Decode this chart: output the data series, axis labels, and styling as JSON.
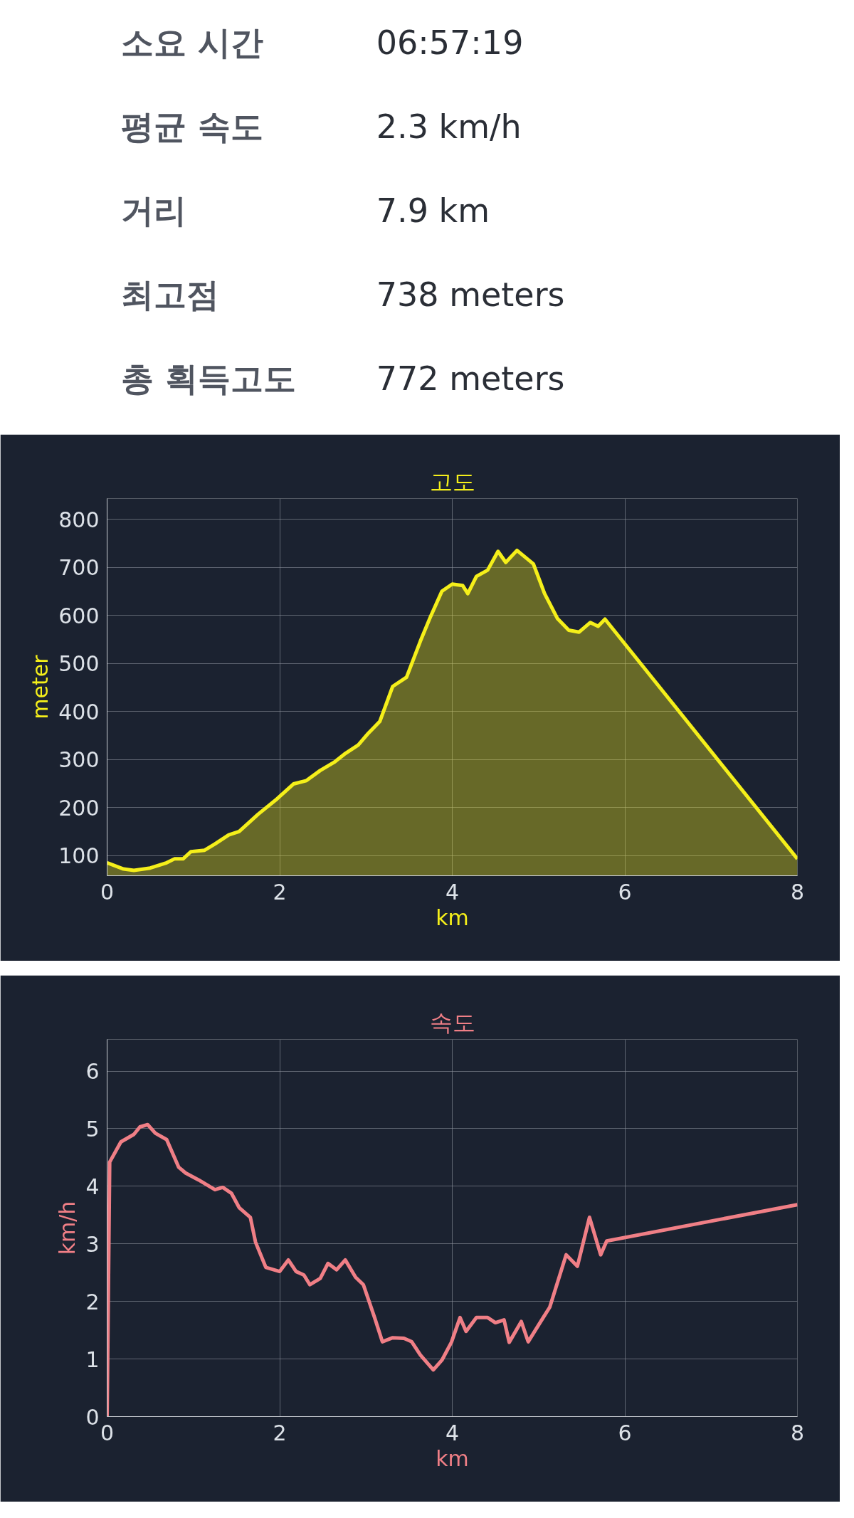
{
  "chart_data": [
    {
      "type": "other",
      "annotations": [
        "소요 시간",
        "06:57:19",
        "평균 속도",
        "2.3 km/h",
        "거리",
        "7.9 km",
        "최고점",
        "738 meters",
        "총 획득고도",
        "772 meters"
      ]
    },
    {
      "type": "area",
      "title": "고도",
      "xlabel": "km",
      "ylabel": "meter",
      "xlim": [
        0,
        8
      ],
      "xticks": [
        0,
        2,
        4,
        6,
        8
      ],
      "ylim": [
        58,
        843
      ],
      "yticks": [
        100,
        200,
        300,
        400,
        500,
        600,
        700,
        800
      ],
      "grid": true,
      "x": [
        0,
        0.19,
        0.31,
        0.5,
        0.69,
        0.78,
        0.88,
        0.97,
        1.13,
        1.25,
        1.41,
        1.53,
        1.75,
        1.97,
        2.16,
        2.31,
        2.47,
        2.63,
        2.75,
        2.91,
        3.03,
        3.16,
        3.31,
        3.47,
        3.63,
        3.75,
        3.88,
        4.0,
        4.12,
        4.18,
        4.28,
        4.41,
        4.53,
        4.62,
        4.75,
        4.94,
        5.07,
        5.22,
        5.35,
        5.47,
        5.6,
        5.69,
        5.77,
        8.0
      ],
      "series": [
        {
          "color": "#f5ef1a",
          "values": [
            85,
            72,
            69,
            74,
            85,
            93,
            93,
            108,
            111,
            124,
            143,
            150,
            186,
            218,
            249,
            256,
            277,
            294,
            311,
            330,
            355,
            379,
            452,
            471,
            546,
            598,
            650,
            665,
            662,
            645,
            681,
            694,
            733,
            710,
            735,
            707,
            645,
            593,
            569,
            565,
            585,
            577,
            592,
            93
          ]
        }
      ]
    },
    {
      "type": "line",
      "title": "속도",
      "xlabel": "km",
      "ylabel": "km/h",
      "xlim": [
        0,
        8
      ],
      "xticks": [
        0,
        2,
        4,
        6,
        8
      ],
      "ylim": [
        0,
        6.55
      ],
      "yticks": [
        0,
        1,
        2,
        3,
        4,
        5,
        6
      ],
      "grid": true,
      "x": [
        0,
        0.03,
        0.16,
        0.31,
        0.38,
        0.47,
        0.56,
        0.69,
        0.83,
        0.91,
        1.06,
        1.25,
        1.34,
        1.44,
        1.53,
        1.66,
        1.72,
        1.84,
        2.0,
        2.1,
        2.19,
        2.28,
        2.35,
        2.47,
        2.56,
        2.66,
        2.76,
        2.88,
        2.97,
        3.1,
        3.19,
        3.31,
        3.44,
        3.53,
        3.63,
        3.78,
        3.88,
        3.99,
        4.09,
        4.16,
        4.28,
        4.41,
        4.5,
        4.6,
        4.66,
        4.8,
        4.88,
        5.0,
        5.13,
        5.32,
        5.45,
        5.59,
        5.72,
        5.79,
        8.0
      ],
      "series": [
        {
          "color": "#f07f86",
          "values": [
            0,
            4.42,
            4.77,
            4.9,
            5.03,
            5.07,
            4.92,
            4.81,
            4.33,
            4.23,
            4.11,
            3.94,
            3.98,
            3.88,
            3.63,
            3.46,
            3.03,
            2.59,
            2.52,
            2.72,
            2.52,
            2.46,
            2.29,
            2.4,
            2.66,
            2.55,
            2.72,
            2.42,
            2.29,
            1.72,
            1.3,
            1.37,
            1.36,
            1.3,
            1.07,
            0.81,
            0.98,
            1.29,
            1.72,
            1.48,
            1.72,
            1.72,
            1.63,
            1.68,
            1.29,
            1.65,
            1.3,
            1.59,
            1.9,
            2.81,
            2.61,
            3.46,
            2.81,
            3.05,
            3.68
          ]
        }
      ]
    }
  ]
}
